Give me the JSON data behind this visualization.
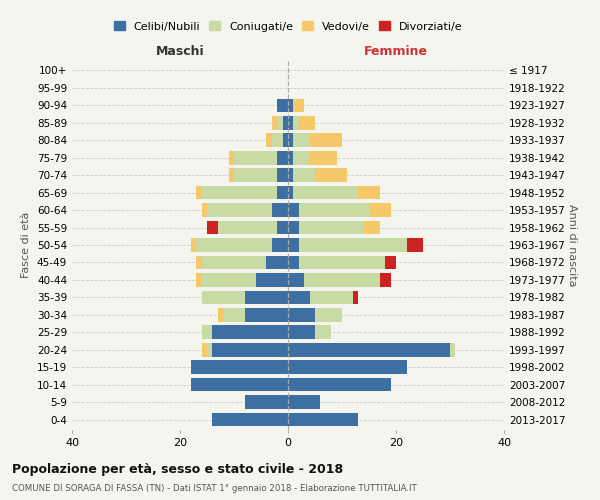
{
  "age_groups": [
    "100+",
    "95-99",
    "90-94",
    "85-89",
    "80-84",
    "75-79",
    "70-74",
    "65-69",
    "60-64",
    "55-59",
    "50-54",
    "45-49",
    "40-44",
    "35-39",
    "30-34",
    "25-29",
    "20-24",
    "15-19",
    "10-14",
    "5-9",
    "0-4"
  ],
  "birth_years": [
    "≤ 1917",
    "1918-1922",
    "1923-1927",
    "1928-1932",
    "1933-1937",
    "1938-1942",
    "1943-1947",
    "1948-1952",
    "1953-1957",
    "1958-1962",
    "1963-1967",
    "1968-1972",
    "1973-1977",
    "1978-1982",
    "1983-1987",
    "1988-1992",
    "1993-1997",
    "1998-2002",
    "2003-2007",
    "2008-2012",
    "2013-2017"
  ],
  "colors": {
    "celibe": "#3e6fa3",
    "coniugato": "#c8dba4",
    "vedovo": "#f5c96a",
    "divorziato": "#cc2222"
  },
  "maschi": {
    "celibe": [
      0,
      0,
      2,
      1,
      1,
      2,
      2,
      2,
      3,
      2,
      3,
      4,
      6,
      8,
      8,
      14,
      14,
      18,
      18,
      8,
      14
    ],
    "coniugato": [
      0,
      0,
      0,
      1,
      2,
      8,
      8,
      14,
      12,
      11,
      14,
      12,
      10,
      8,
      4,
      2,
      1,
      0,
      0,
      0,
      0
    ],
    "vedovo": [
      0,
      0,
      0,
      1,
      1,
      1,
      1,
      1,
      1,
      0,
      1,
      1,
      1,
      0,
      1,
      0,
      1,
      0,
      0,
      0,
      0
    ],
    "divorziato": [
      0,
      0,
      0,
      0,
      0,
      0,
      0,
      0,
      0,
      2,
      0,
      0,
      0,
      0,
      0,
      0,
      0,
      0,
      0,
      0,
      0
    ]
  },
  "femmine": {
    "nubile": [
      0,
      0,
      1,
      1,
      1,
      1,
      1,
      1,
      2,
      2,
      2,
      2,
      3,
      4,
      5,
      5,
      30,
      22,
      19,
      6,
      13
    ],
    "coniugata": [
      0,
      0,
      0,
      1,
      3,
      3,
      4,
      12,
      13,
      12,
      20,
      16,
      14,
      8,
      5,
      3,
      1,
      0,
      0,
      0,
      0
    ],
    "vedova": [
      0,
      0,
      2,
      3,
      6,
      5,
      6,
      4,
      4,
      3,
      0,
      0,
      0,
      0,
      0,
      0,
      0,
      0,
      0,
      0,
      0
    ],
    "divorziata": [
      0,
      0,
      0,
      0,
      0,
      0,
      0,
      0,
      0,
      0,
      3,
      2,
      2,
      1,
      0,
      0,
      0,
      0,
      0,
      0,
      0
    ]
  },
  "xlim": 40,
  "xlabel_left": "Maschi",
  "xlabel_right": "Femmine",
  "ylabel_left": "Fasce di età",
  "ylabel_right": "Anni di nascita",
  "title": "Popolazione per età, sesso e stato civile - 2018",
  "subtitle": "COMUNE DI SORAGA DI FASSA (TN) - Dati ISTAT 1° gennaio 2018 - Elaborazione TUTTITALIA.IT",
  "legend_labels": [
    "Celibi/Nubili",
    "Coniugati/e",
    "Vedovi/e",
    "Divorziati/e"
  ],
  "bg_color": "#f5f5f0"
}
